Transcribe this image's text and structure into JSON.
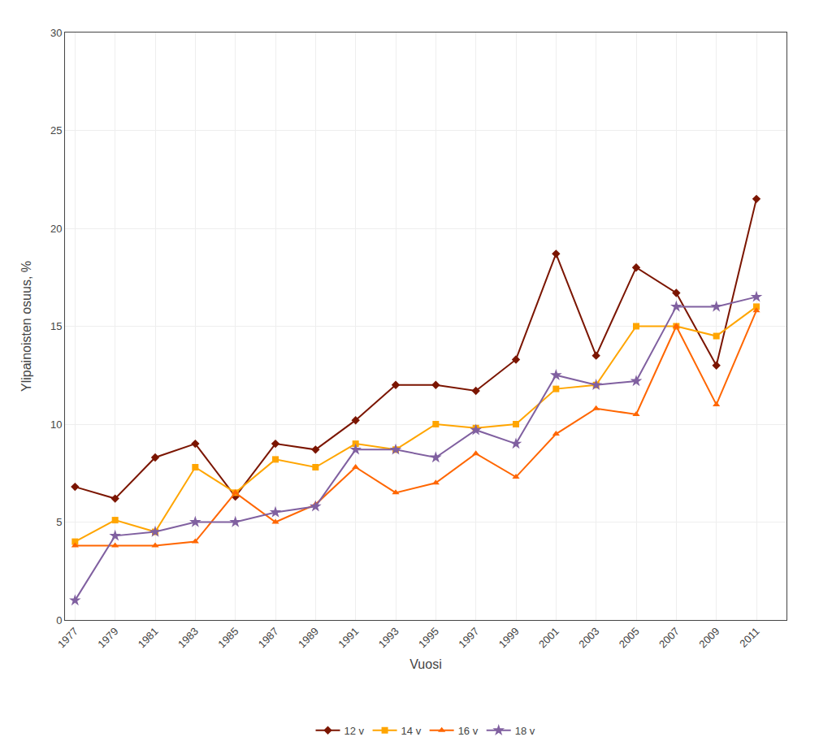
{
  "chart_data": {
    "type": "line",
    "ylabel": "Ylipainoisten osuus, %",
    "xlabel": "Vuosi",
    "x": [
      1977,
      1979,
      1981,
      1983,
      1985,
      1987,
      1989,
      1991,
      1993,
      1995,
      1997,
      1999,
      2001,
      2003,
      2005,
      2007,
      2009,
      2011
    ],
    "series": [
      {
        "name": "12 v",
        "color": "#7B1500",
        "marker": "diamond",
        "values": [
          6.8,
          6.2,
          8.3,
          9.0,
          6.3,
          9.0,
          8.7,
          10.2,
          12.0,
          12.0,
          11.7,
          13.3,
          18.7,
          13.5,
          18.0,
          16.7,
          13.0,
          21.5
        ]
      },
      {
        "name": "14 v",
        "color": "#FFA500",
        "marker": "square",
        "values": [
          4.0,
          5.1,
          4.5,
          7.8,
          6.5,
          8.2,
          7.8,
          9.0,
          8.7,
          10.0,
          9.8,
          10.0,
          11.8,
          12.0,
          15.0,
          15.0,
          14.5,
          16.0
        ]
      },
      {
        "name": "16 v",
        "color": "#FF6600",
        "marker": "triangle-up",
        "values": [
          3.8,
          3.8,
          3.8,
          4.0,
          6.5,
          5.0,
          5.9,
          7.8,
          6.5,
          7.0,
          8.5,
          7.3,
          9.5,
          10.8,
          10.5,
          15.0,
          11.0,
          15.8
        ]
      },
      {
        "name": "18 v",
        "color": "#8060A0",
        "marker": "star",
        "values": [
          1.0,
          4.3,
          4.5,
          5.0,
          5.0,
          5.5,
          5.8,
          8.7,
          8.7,
          8.3,
          9.7,
          9.0,
          12.5,
          12.0,
          12.2,
          16.0,
          16.0,
          16.5
        ]
      }
    ],
    "xlim": [
      1976.5,
      2012.5
    ],
    "xticks": [
      1977,
      1979,
      1981,
      1983,
      1985,
      1987,
      1989,
      1991,
      1993,
      1995,
      1997,
      1999,
      2001,
      2003,
      2005,
      2007,
      2009,
      2011
    ],
    "ylim": [
      0,
      30
    ],
    "yticks": [
      0,
      5,
      10,
      15,
      20,
      25,
      30
    ],
    "grid": true,
    "legend": "bottom"
  }
}
